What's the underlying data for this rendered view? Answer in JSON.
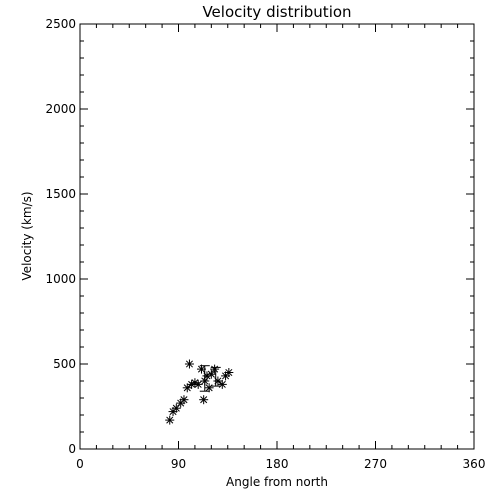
{
  "chart_data": {
    "type": "scatter",
    "title": "Velocity distribution",
    "xlabel": "Angle from north",
    "ylabel": "Velocity (km/s)",
    "xlim": [
      0,
      360
    ],
    "ylim": [
      0,
      2500
    ],
    "xticks": [
      0,
      90,
      180,
      270,
      360
    ],
    "yticks": [
      0,
      500,
      1000,
      1500,
      2000,
      2500
    ],
    "grid": false,
    "marker": "asterisk",
    "points": [
      {
        "x": 82,
        "y": 170
      },
      {
        "x": 85,
        "y": 220
      },
      {
        "x": 88,
        "y": 240
      },
      {
        "x": 92,
        "y": 270
      },
      {
        "x": 95,
        "y": 290
      },
      {
        "x": 98,
        "y": 360
      },
      {
        "x": 100,
        "y": 500
      },
      {
        "x": 102,
        "y": 380
      },
      {
        "x": 105,
        "y": 390
      },
      {
        "x": 108,
        "y": 380
      },
      {
        "x": 111,
        "y": 470
      },
      {
        "x": 113,
        "y": 290
      },
      {
        "x": 114,
        "y": 400
      },
      {
        "x": 116,
        "y": 430
      },
      {
        "x": 118,
        "y": 360
      },
      {
        "x": 120,
        "y": 440
      },
      {
        "x": 123,
        "y": 470
      },
      {
        "x": 126,
        "y": 400
      },
      {
        "x": 130,
        "y": 380
      },
      {
        "x": 133,
        "y": 430
      },
      {
        "x": 136,
        "y": 450
      }
    ],
    "error_bars": [
      {
        "x": 114,
        "y": 420,
        "ylow": 340,
        "yhigh": 490
      },
      {
        "x": 124,
        "y": 430,
        "ylow": 370,
        "yhigh": 480
      }
    ]
  }
}
